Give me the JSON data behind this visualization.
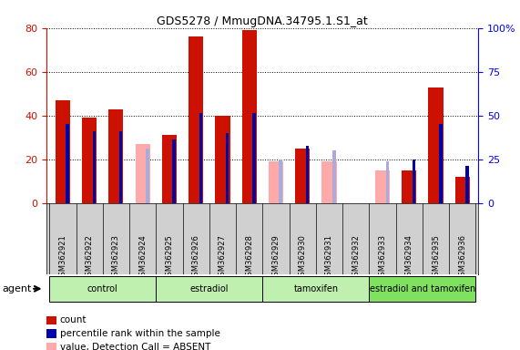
{
  "title": "GDS5278 / MmugDNA.34795.1.S1_at",
  "samples": [
    "GSM362921",
    "GSM362922",
    "GSM362923",
    "GSM362924",
    "GSM362925",
    "GSM362926",
    "GSM362927",
    "GSM362928",
    "GSM362929",
    "GSM362930",
    "GSM362931",
    "GSM362932",
    "GSM362933",
    "GSM362934",
    "GSM362935",
    "GSM362936"
  ],
  "group_names": [
    "control",
    "estradiol",
    "tamoxifen",
    "estradiol and tamoxifen"
  ],
  "group_ranges": [
    [
      0,
      3
    ],
    [
      4,
      7
    ],
    [
      8,
      11
    ],
    [
      12,
      15
    ]
  ],
  "group_colors": [
    "#c0f0b0",
    "#c0f0b0",
    "#c0f0b0",
    "#80e060"
  ],
  "count": [
    47,
    39,
    43,
    null,
    31,
    76,
    40,
    79,
    null,
    25,
    null,
    null,
    null,
    15,
    53,
    12
  ],
  "rank": [
    36,
    33,
    33,
    null,
    29,
    41,
    32,
    41,
    null,
    26,
    null,
    null,
    null,
    20,
    36,
    17
  ],
  "value_absent": [
    null,
    null,
    null,
    27,
    null,
    null,
    null,
    null,
    19,
    null,
    19,
    null,
    15,
    null,
    null,
    null
  ],
  "rank_absent": [
    null,
    null,
    null,
    25,
    null,
    null,
    null,
    null,
    20,
    null,
    24,
    null,
    19,
    null,
    null,
    null
  ],
  "count_color": "#cc1100",
  "rank_color": "#0000aa",
  "value_absent_color": "#ffaaaa",
  "rank_absent_color": "#aaaadd",
  "ylim_left": [
    0,
    80
  ],
  "ylim_right": [
    0,
    100
  ],
  "yticks_left": [
    0,
    20,
    40,
    60,
    80
  ],
  "yticks_right": [
    0,
    25,
    50,
    75,
    100
  ],
  "bg_color": "#d0d0d0",
  "legend_items": [
    {
      "color": "#cc1100",
      "label": "count"
    },
    {
      "color": "#0000aa",
      "label": "percentile rank within the sample"
    },
    {
      "color": "#ffaaaa",
      "label": "value, Detection Call = ABSENT"
    },
    {
      "color": "#aaaadd",
      "label": "rank, Detection Call = ABSENT"
    }
  ]
}
